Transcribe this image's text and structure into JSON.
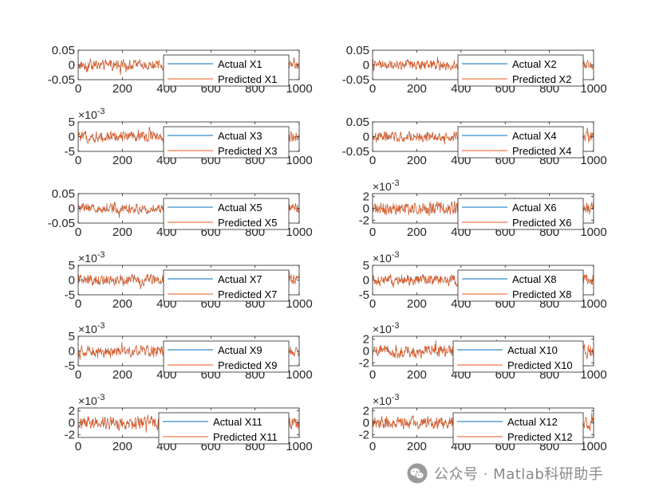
{
  "colors": {
    "actual": "#0072BD",
    "predicted": "#EA5A1C",
    "axis": "#262626",
    "watermark": "#8a8a8a"
  },
  "watermark": {
    "icon": "wechat-icon",
    "text": "公众号 · Matlab科研助手"
  },
  "chart_data": [
    {
      "type": "line",
      "grid": false,
      "legend": "inside-right",
      "x_range": [
        0,
        1000
      ],
      "x_ticks": [
        "0",
        "200",
        "400",
        "600",
        "800",
        "1000"
      ],
      "y_ticks": [
        "0.05",
        "0",
        "-0.05"
      ],
      "y_exponent": "",
      "ylim": [
        -0.05,
        0.05
      ],
      "amplitude": 0.018,
      "series": [
        {
          "name": "Actual X1"
        },
        {
          "name": "Predicted X1"
        }
      ]
    },
    {
      "type": "line",
      "grid": false,
      "legend": "inside-right",
      "x_range": [
        0,
        1000
      ],
      "x_ticks": [
        "0",
        "200",
        "400",
        "600",
        "800",
        "1000"
      ],
      "y_ticks": [
        "0.05",
        "0",
        "-0.05"
      ],
      "y_exponent": "",
      "ylim": [
        -0.05,
        0.05
      ],
      "amplitude": 0.018,
      "series": [
        {
          "name": "Actual X2"
        },
        {
          "name": "Predicted X2"
        }
      ]
    },
    {
      "type": "line",
      "grid": false,
      "legend": "inside-right",
      "x_range": [
        0,
        1000
      ],
      "x_ticks": [
        "0",
        "200",
        "400",
        "600",
        "800",
        "1000"
      ],
      "y_ticks": [
        "5",
        "0",
        "-5"
      ],
      "y_exponent": "-3",
      "ylim": [
        -5,
        5
      ],
      "amplitude": 2.0,
      "series": [
        {
          "name": "Actual X3"
        },
        {
          "name": "Predicted X3"
        }
      ]
    },
    {
      "type": "line",
      "grid": false,
      "legend": "inside-right",
      "x_range": [
        0,
        1000
      ],
      "x_ticks": [
        "0",
        "200",
        "400",
        "600",
        "800",
        "1000"
      ],
      "y_ticks": [
        "0.05",
        "0",
        "-0.05"
      ],
      "y_exponent": "",
      "ylim": [
        -0.05,
        0.05
      ],
      "amplitude": 0.018,
      "series": [
        {
          "name": "Actual X4"
        },
        {
          "name": "Predicted X4"
        }
      ]
    },
    {
      "type": "line",
      "grid": false,
      "legend": "inside-right",
      "x_range": [
        0,
        1000
      ],
      "x_ticks": [
        "0",
        "200",
        "400",
        "600",
        "800",
        "1000"
      ],
      "y_ticks": [
        "0.05",
        "0",
        "-0.05"
      ],
      "y_exponent": "",
      "ylim": [
        -0.05,
        0.05
      ],
      "amplitude": 0.018,
      "series": [
        {
          "name": "Actual X5"
        },
        {
          "name": "Predicted X5"
        }
      ]
    },
    {
      "type": "line",
      "grid": false,
      "legend": "inside-right",
      "x_range": [
        0,
        1000
      ],
      "x_ticks": [
        "0",
        "200",
        "400",
        "600",
        "800",
        "1000"
      ],
      "y_ticks": [
        "2",
        "0",
        "-2"
      ],
      "y_exponent": "-3",
      "ylim": [
        -2.5,
        2.5
      ],
      "amplitude": 1.2,
      "series": [
        {
          "name": "Actual X6"
        },
        {
          "name": "Predicted X6"
        }
      ]
    },
    {
      "type": "line",
      "grid": false,
      "legend": "inside-right",
      "x_range": [
        0,
        1000
      ],
      "x_ticks": [
        "0",
        "200",
        "400",
        "600",
        "800",
        "1000"
      ],
      "y_ticks": [
        "5",
        "0",
        "-5"
      ],
      "y_exponent": "-3",
      "ylim": [
        -5,
        5
      ],
      "amplitude": 2.0,
      "series": [
        {
          "name": "Actual X7"
        },
        {
          "name": "Predicted X7"
        }
      ]
    },
    {
      "type": "line",
      "grid": false,
      "legend": "inside-right",
      "x_range": [
        0,
        1000
      ],
      "x_ticks": [
        "0",
        "200",
        "400",
        "600",
        "800",
        "1000"
      ],
      "y_ticks": [
        "5",
        "0",
        "-5"
      ],
      "y_exponent": "-3",
      "ylim": [
        -5,
        5
      ],
      "amplitude": 2.0,
      "series": [
        {
          "name": "Actual X8"
        },
        {
          "name": "Predicted X8"
        }
      ]
    },
    {
      "type": "line",
      "grid": false,
      "legend": "inside-right",
      "x_range": [
        0,
        1000
      ],
      "x_ticks": [
        "0",
        "200",
        "400",
        "600",
        "800",
        "1000"
      ],
      "y_ticks": [
        "5",
        "0",
        "-5"
      ],
      "y_exponent": "-3",
      "ylim": [
        -5,
        5
      ],
      "amplitude": 2.0,
      "series": [
        {
          "name": "Actual X9"
        },
        {
          "name": "Predicted X9"
        }
      ]
    },
    {
      "type": "line",
      "grid": false,
      "legend": "inside-right",
      "x_range": [
        0,
        1000
      ],
      "x_ticks": [
        "0",
        "200",
        "400",
        "600",
        "800",
        "1000"
      ],
      "y_ticks": [
        "2",
        "0",
        "-2"
      ],
      "y_exponent": "-3",
      "ylim": [
        -2.5,
        2.5
      ],
      "amplitude": 1.2,
      "series": [
        {
          "name": "Actual X10"
        },
        {
          "name": "Predicted X10"
        }
      ]
    },
    {
      "type": "line",
      "grid": false,
      "legend": "inside-right",
      "x_range": [
        0,
        1000
      ],
      "x_ticks": [
        "0",
        "200",
        "400",
        "600",
        "800",
        "1000"
      ],
      "y_ticks": [
        "2",
        "0",
        "-2"
      ],
      "y_exponent": "-3",
      "ylim": [
        -2.5,
        2.5
      ],
      "amplitude": 1.2,
      "series": [
        {
          "name": "Actual X11"
        },
        {
          "name": "Predicted X11"
        }
      ]
    },
    {
      "type": "line",
      "grid": false,
      "legend": "inside-right",
      "x_range": [
        0,
        1000
      ],
      "x_ticks": [
        "0",
        "200",
        "400",
        "600",
        "800",
        "1000"
      ],
      "y_ticks": [
        "2",
        "0",
        "-2"
      ],
      "y_exponent": "-3",
      "ylim": [
        -2.5,
        2.5
      ],
      "amplitude": 1.2,
      "series": [
        {
          "name": "Actual X12"
        },
        {
          "name": "Predicted X12"
        }
      ]
    }
  ]
}
